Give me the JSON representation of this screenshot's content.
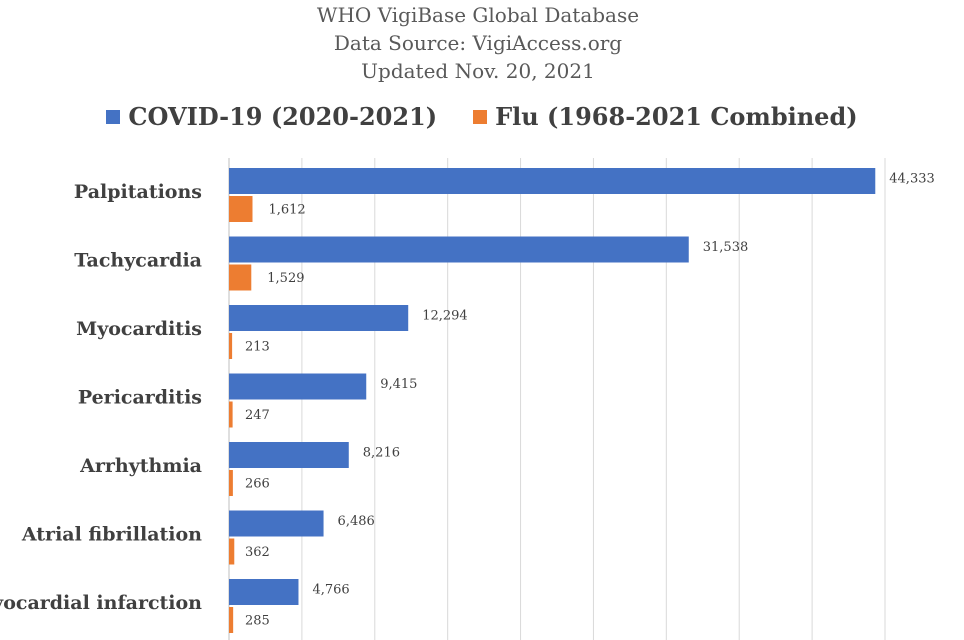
{
  "chart_data": {
    "type": "bar",
    "orientation": "horizontal",
    "title_lines": [
      "WHO VigiBase Global Database",
      "Data Source: VigiAccess.org",
      "Updated Nov. 20, 2021"
    ],
    "categories": [
      "Palpitations",
      "Tachycardia",
      "Myocarditis",
      "Pericarditis",
      "Arrhythmia",
      "Atrial fibrillation",
      "Myocardial infarction"
    ],
    "series": [
      {
        "name": "COVID-19 (2020-2021)",
        "color": "#4472c4",
        "values": [
          44333,
          31538,
          12294,
          9415,
          8216,
          6486,
          4766
        ],
        "labels": [
          "44,333",
          "31,538",
          "12,294",
          "9,415",
          "8,216",
          "6,486",
          "4,766"
        ]
      },
      {
        "name": "Flu (1968-2021 Combined)",
        "color": "#ed7d31",
        "values": [
          1612,
          1529,
          213,
          247,
          266,
          362,
          285
        ],
        "labels": [
          "1,612",
          "1,529",
          "213",
          "247",
          "266",
          "362",
          "285"
        ]
      }
    ],
    "xlim": [
      0,
      45000
    ],
    "grid": true,
    "legend_position": "top"
  }
}
